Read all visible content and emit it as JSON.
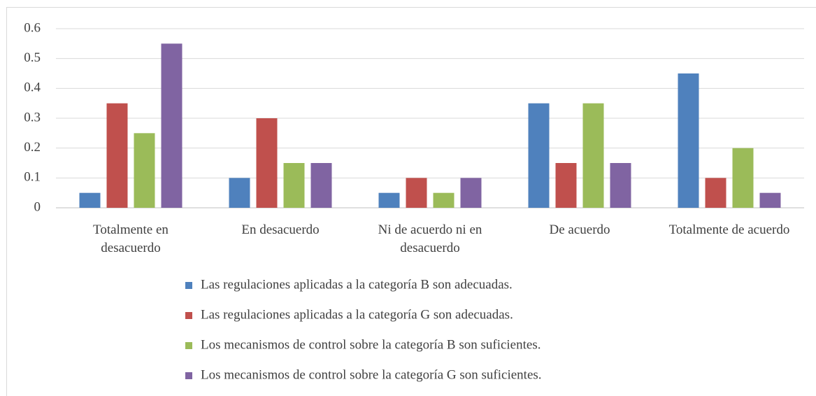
{
  "chart_data": {
    "type": "bar",
    "categories": [
      "Totalmente en desacuerdo",
      "En desacuerdo",
      "Ni de acuerdo ni en desacuerdo",
      "De acuerdo",
      "Totalmente de acuerdo"
    ],
    "series": [
      {
        "name": "Las regulaciones aplicadas a la categoría B son adecuadas.",
        "color": "#4f81bd",
        "values": [
          0.05,
          0.1,
          0.05,
          0.35,
          0.45
        ]
      },
      {
        "name": "Las regulaciones aplicadas a la categoría G son adecuadas.",
        "color": "#c0504d",
        "values": [
          0.35,
          0.3,
          0.1,
          0.15,
          0.1
        ]
      },
      {
        "name": "Los mecanismos de control sobre la categoría B son suficientes.",
        "color": "#9bbb59",
        "values": [
          0.25,
          0.15,
          0.05,
          0.35,
          0.2
        ]
      },
      {
        "name": "Los mecanismos de control sobre la categoría G son suficientes.",
        "color": "#8064a2",
        "values": [
          0.55,
          0.15,
          0.1,
          0.15,
          0.05
        ]
      }
    ],
    "ylim": [
      0,
      0.6
    ],
    "yticks": [
      0,
      0.1,
      0.2,
      0.3,
      0.4,
      0.5,
      0.6
    ],
    "grid": true,
    "legend": "bottom"
  }
}
